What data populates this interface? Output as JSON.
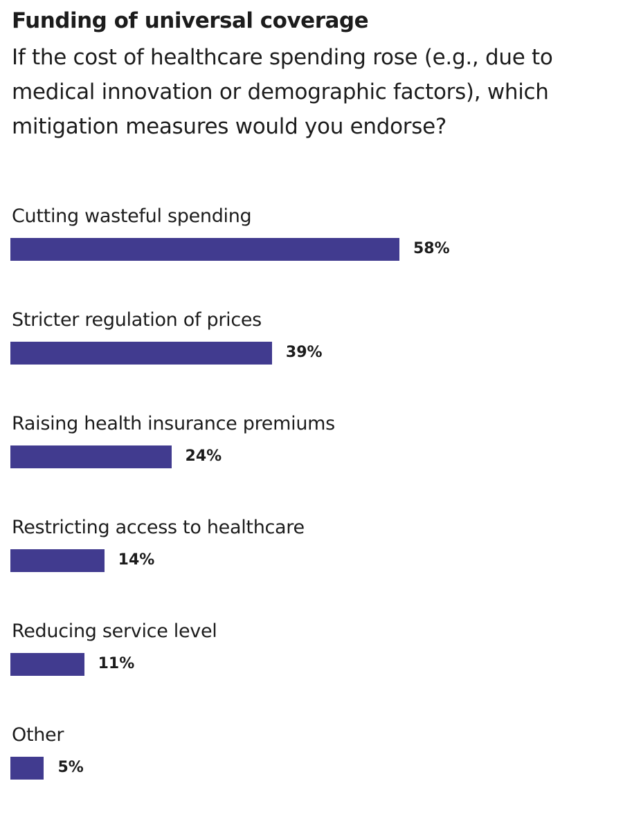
{
  "header": {
    "title": "Funding of universal coverage",
    "subtitle": "If the cost of healthcare spending rose (e.g., due to medical innovation or demographic factors), which mitigation measures would you endorse?"
  },
  "colors": {
    "bar": "#413b8f",
    "text": "#1c1c1c",
    "background": "#ffffff"
  },
  "rows": [
    {
      "label": "Cutting wasteful spending",
      "value": 58,
      "value_label": "58%"
    },
    {
      "label": "Stricter regulation of prices",
      "value": 39,
      "value_label": "39%"
    },
    {
      "label": "Raising health insurance premiums",
      "value": 24,
      "value_label": "24%"
    },
    {
      "label": "Restricting access to healthcare",
      "value": 14,
      "value_label": "14%"
    },
    {
      "label": "Reducing service level",
      "value": 11,
      "value_label": "11%"
    },
    {
      "label": "Other",
      "value": 5,
      "value_label": "5%"
    }
  ],
  "chart_data": {
    "type": "bar",
    "orientation": "horizontal",
    "title": "Funding of universal coverage",
    "subtitle": "If the cost of healthcare spending rose (e.g., due to medical innovation or demographic factors), which mitigation measures would you endorse?",
    "categories": [
      "Cutting wasteful spending",
      "Stricter regulation of prices",
      "Raising health insurance premiums",
      "Restricting access to healthcare",
      "Reducing service level",
      "Other"
    ],
    "values": [
      58,
      39,
      24,
      14,
      11,
      5
    ],
    "unit": "%",
    "xlabel": "",
    "ylabel": "",
    "grid": false,
    "legend": null,
    "data_labels": true
  }
}
